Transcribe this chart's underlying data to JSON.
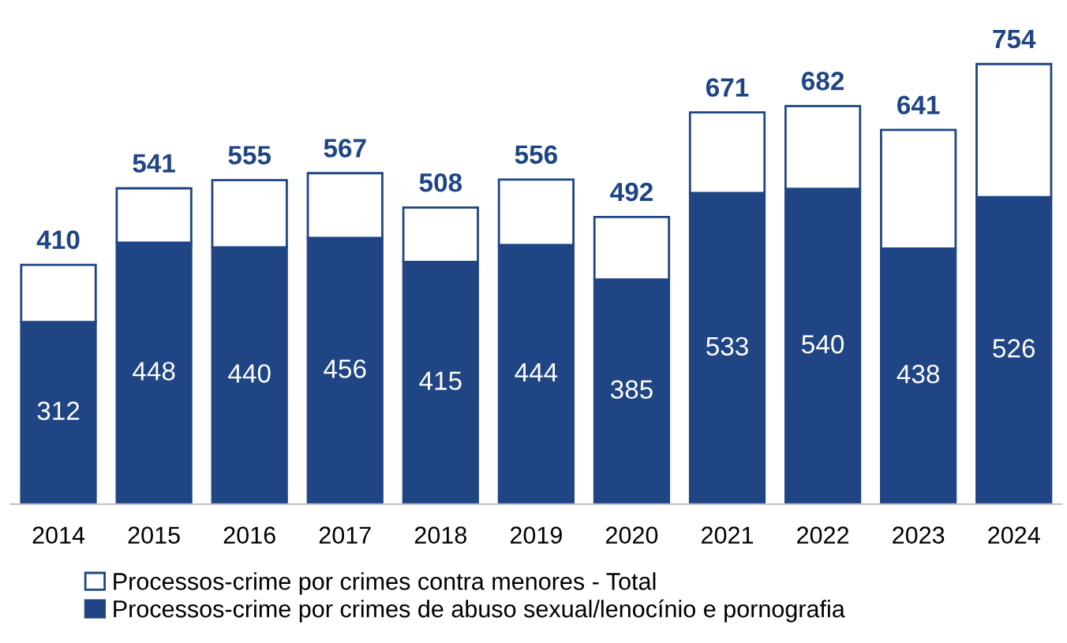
{
  "chart_data": {
    "type": "bar",
    "stacked": true,
    "categories": [
      "2014",
      "2015",
      "2016",
      "2017",
      "2018",
      "2019",
      "2020",
      "2021",
      "2022",
      "2023",
      "2024"
    ],
    "series": [
      {
        "name": "Processos-crime por crimes de abuso sexual/lenocínio e pornografia",
        "color": "#1f4584",
        "values": [
          312,
          448,
          440,
          456,
          415,
          444,
          385,
          533,
          540,
          438,
          526
        ],
        "value_labels": [
          "312",
          "448",
          "440",
          "456",
          "415",
          "444",
          "385",
          "533",
          "540",
          "438",
          "526"
        ]
      },
      {
        "name": "Processos-crime por crimes contra menores - Total",
        "color": "#ffffff",
        "values": [
          98,
          93,
          115,
          111,
          93,
          112,
          107,
          138,
          142,
          203,
          228
        ]
      }
    ],
    "totals": [
      "410",
      "541",
      "555",
      "567",
      "508",
      "556",
      "492",
      "671",
      "682",
      "641",
      "754"
    ],
    "legend": "bottom",
    "grid": false
  }
}
